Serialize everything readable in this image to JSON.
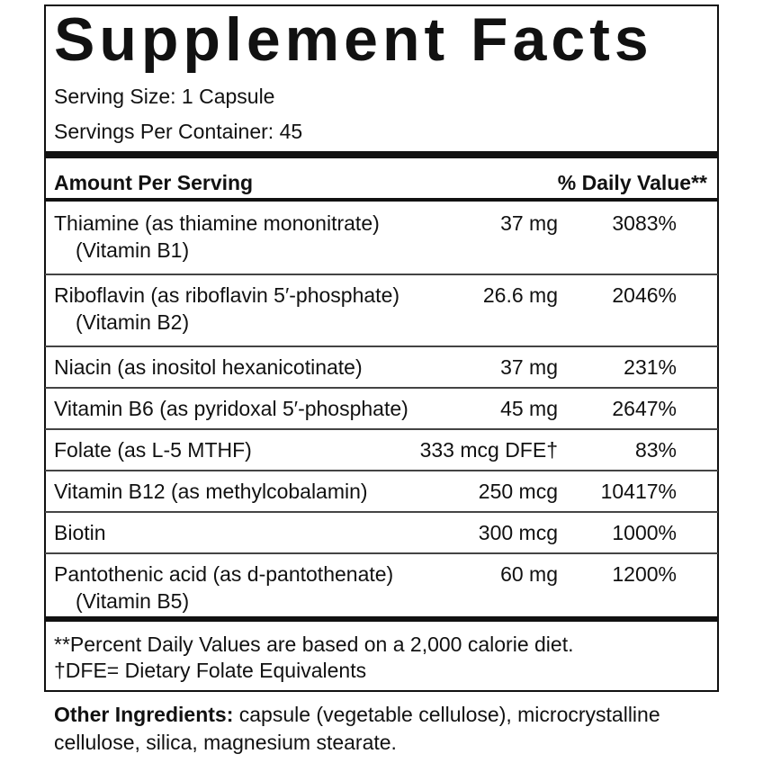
{
  "title": "Supplement Facts",
  "serving_size": "Serving Size: 1 Capsule",
  "servings_per_container": "Servings Per Container: 45",
  "header": {
    "amount": "Amount Per Serving",
    "daily_value": "% Daily Value**"
  },
  "rows": [
    {
      "name": "Thiamine (as thiamine mononitrate)",
      "sub": "(Vitamin B1)",
      "amount": "37 mg",
      "dv": "3083%"
    },
    {
      "name": "Riboflavin (as riboflavin 5′-phosphate)",
      "sub": "(Vitamin B2)",
      "amount": "26.6 mg",
      "dv": "2046%"
    },
    {
      "name": "Niacin (as inositol hexanicotinate)",
      "amount": "37 mg",
      "dv": "231%"
    },
    {
      "name": "Vitamin B6 (as pyridoxal 5′-phosphate)",
      "amount": "45 mg",
      "dv": "2647%"
    },
    {
      "name": "Folate (as L-5 MTHF)",
      "amount": "333 mcg DFE†",
      "dv": "83%"
    },
    {
      "name": "Vitamin B12 (as methylcobalamin)",
      "amount": "250 mcg",
      "dv": "10417%"
    },
    {
      "name": "Biotin",
      "amount": "300 mcg",
      "dv": "1000%"
    },
    {
      "name": "Pantothenic acid (as d-pantothenate)",
      "sub": "(Vitamin B5)",
      "amount": "60 mg",
      "dv": "1200%"
    }
  ],
  "footnotes": [
    "**Percent Daily Values are based on a 2,000 calorie diet.",
    "†DFE= Dietary Folate Equivalents"
  ],
  "other_ingredients": {
    "label": "Other Ingredients:",
    "text": "capsule (vegetable cellulose), microcrystalline cellulose, silica, magnesium stearate."
  }
}
